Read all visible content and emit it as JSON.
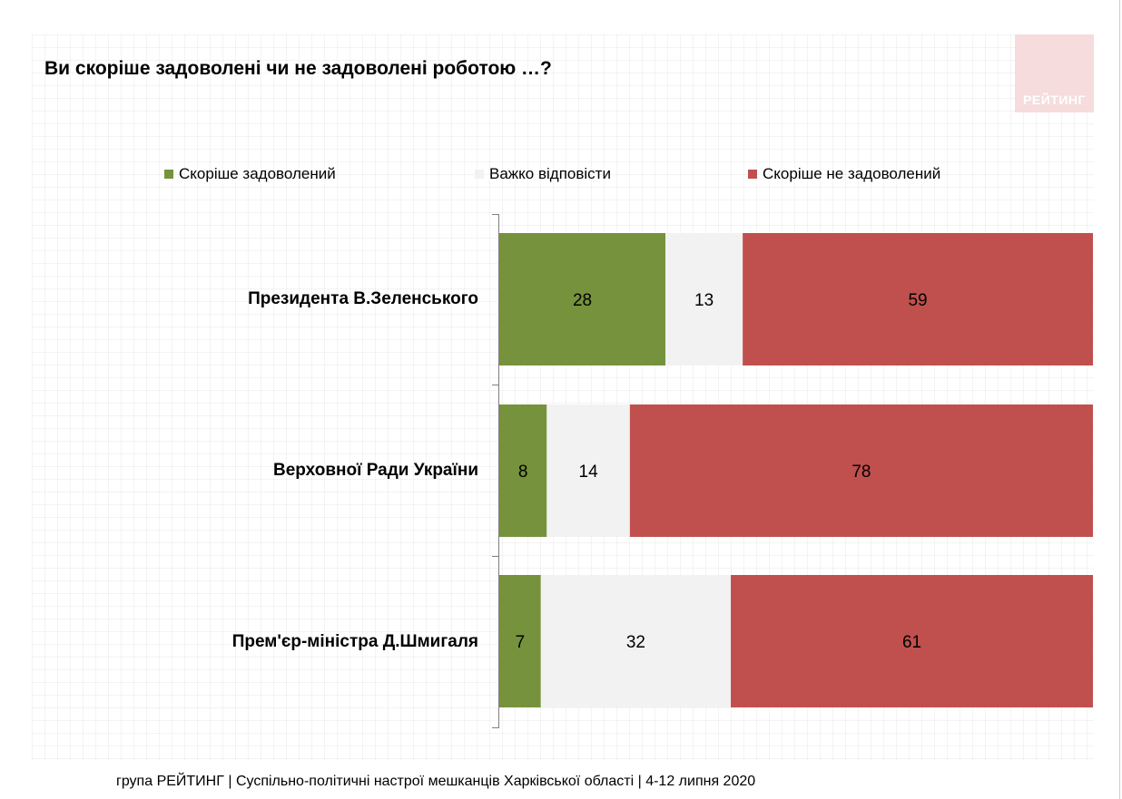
{
  "title": "Ви скоріше задоволені чи не задоволені роботою …?",
  "logo_text": "РЕЙТИНГ",
  "footer": "група РЕЙТИНГ  | Суспільно-політичні настрої мешканців Харківської області | 4-12 липня 2020",
  "chart_data": {
    "type": "bar",
    "orientation": "horizontal",
    "stacked": true,
    "title": "Ви скоріше задоволені чи не задоволені роботою …?",
    "categories": [
      "Президента В.Зеленського",
      "Верховної Ради України",
      "Прем'єр-міністра Д.Шмигаля"
    ],
    "series": [
      {
        "name": "Скоріше задоволений",
        "color": "#76923c",
        "values": [
          28,
          8,
          7
        ]
      },
      {
        "name": "Важко відповісти",
        "color": "#f2f2f2",
        "values": [
          13,
          14,
          32
        ]
      },
      {
        "name": "Скоріше не задоволений",
        "color": "#c0504d",
        "values": [
          59,
          78,
          61
        ]
      }
    ],
    "xlim": [
      0,
      100
    ],
    "legend": "top",
    "grid": false,
    "data_labels": true
  }
}
